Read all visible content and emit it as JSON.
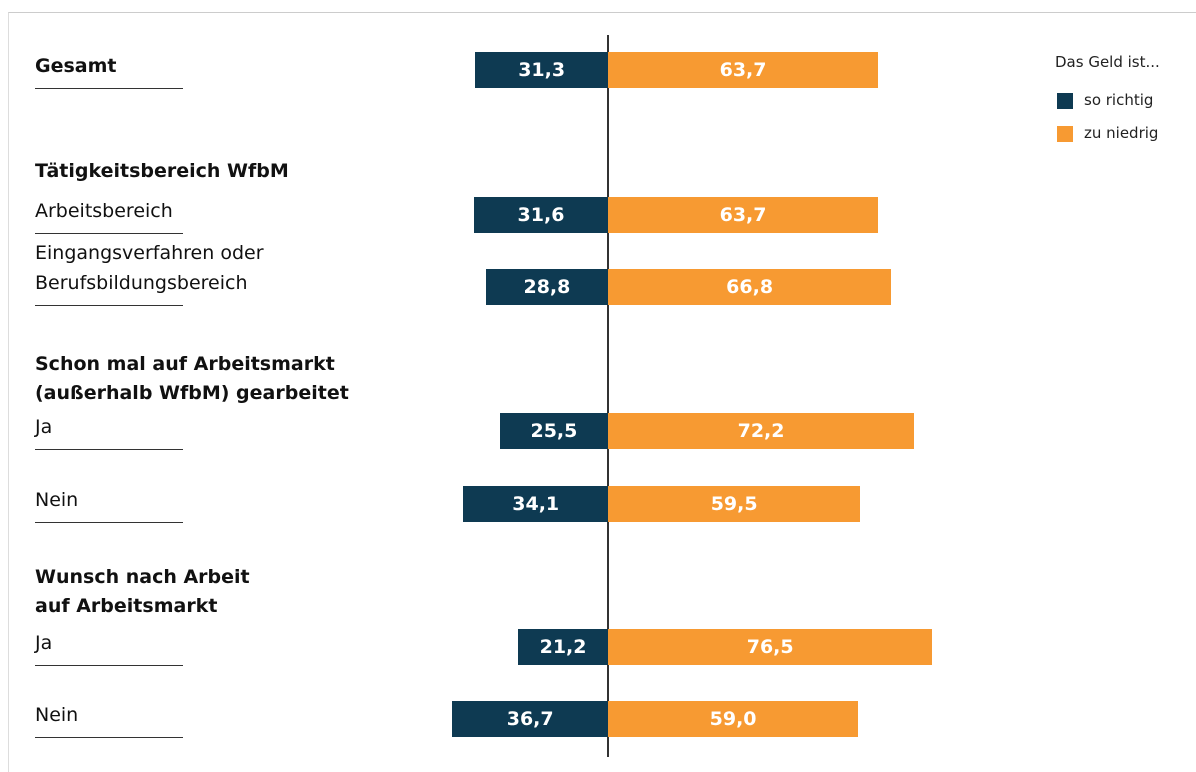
{
  "chart_data": {
    "type": "diverging-bar",
    "legend_title": "Das Geld ist...",
    "section_titles": [
      "Tätigkeitsbereich WfbM",
      "Schon mal auf Arbeitsmarkt\n(außerhalb WfbM)  gearbeitet",
      "Wunsch nach Arbeit\nauf Arbeitsmarkt"
    ],
    "categories": [
      "Gesamt",
      "Arbeitsbereich",
      "Eingangsverfahren oder\nBerufsbildungsbereich",
      "Ja",
      "Nein",
      "Ja",
      "Nein"
    ],
    "series": [
      {
        "name": "so richtig",
        "color": "#0e3a52",
        "side": "left",
        "values": [
          31.3,
          31.6,
          28.8,
          25.5,
          34.1,
          21.2,
          36.7
        ],
        "value_labels": [
          "31,3",
          "31,6",
          "28,8",
          "25,5",
          "34,1",
          "21,2",
          "36,7"
        ]
      },
      {
        "name": "zu niedrig",
        "color": "#f79a32",
        "side": "right",
        "values": [
          63.7,
          63.7,
          66.8,
          72.2,
          59.5,
          76.5,
          59.0
        ],
        "value_labels": [
          "63,7",
          "63,7",
          "66,8",
          "72,2",
          "59,5",
          "76,5",
          "59,0"
        ]
      }
    ]
  }
}
